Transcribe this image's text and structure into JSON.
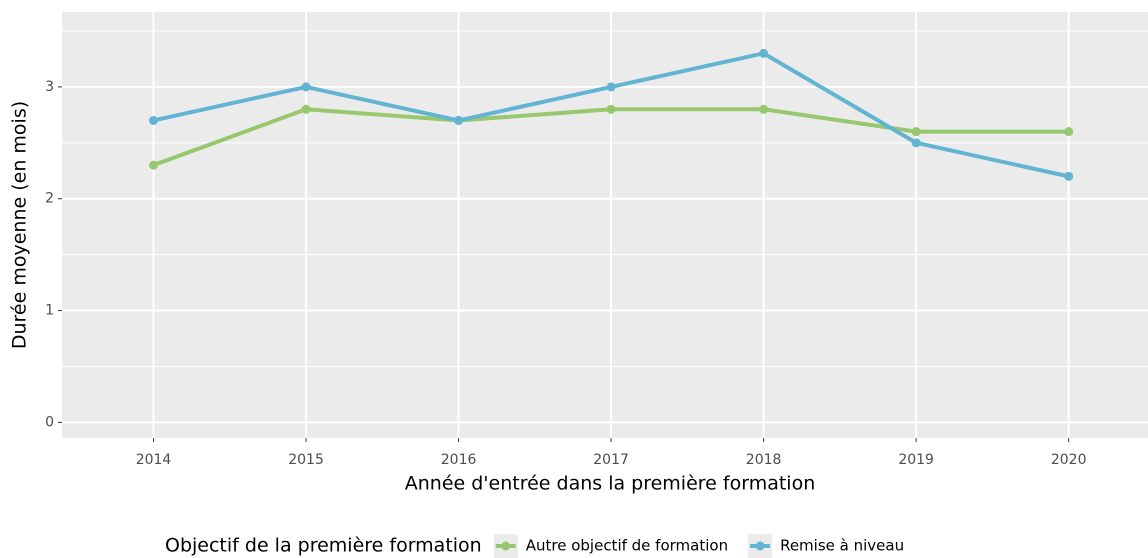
{
  "chart_data": {
    "type": "line",
    "x_label": "Année d'entrée dans la première formation",
    "y_label": "Durée moyenne (en mois)",
    "legend_title": "Objectif de la première formation",
    "x": [
      2014,
      2015,
      2016,
      2017,
      2018,
      2019,
      2020
    ],
    "series": [
      {
        "name": "Autre objectif de formation",
        "color": "#97c76e",
        "values": [
          2.3,
          2.8,
          2.7,
          2.8,
          2.8,
          2.6,
          2.6
        ]
      },
      {
        "name": "Remise à niveau",
        "color": "#62b4d2",
        "values": [
          2.7,
          3.0,
          2.7,
          3.0,
          3.3,
          2.5,
          2.2
        ]
      }
    ],
    "xlim": [
      2013.4,
      2020.52
    ],
    "xticks": [
      2014,
      2015,
      2016,
      2017,
      2018,
      2019,
      2020
    ],
    "ylim": [
      -0.14,
      3.67
    ],
    "yticks": [
      0,
      1,
      2,
      3
    ],
    "yminor": [
      0.5,
      1.5,
      2.5,
      3.5
    ],
    "grid": true,
    "legend_position": "bottom"
  }
}
